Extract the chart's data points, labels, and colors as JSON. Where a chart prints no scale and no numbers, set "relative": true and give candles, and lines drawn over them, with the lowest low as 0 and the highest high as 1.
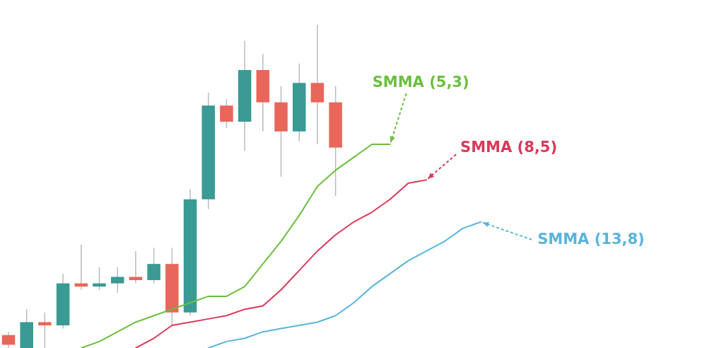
{
  "chart_data": {
    "type": "candlestick",
    "relative": true,
    "categories": [
      null,
      null,
      null,
      null,
      null,
      null,
      null,
      null,
      null,
      null,
      null,
      null,
      null,
      null,
      null,
      null,
      null,
      null,
      null,
      null,
      null,
      null,
      null,
      null,
      null,
      null,
      null
    ],
    "colors": [
      "#e8675a",
      "#3a9a94",
      "#e8675a",
      "#3a9a94",
      "#e8675a",
      "#3a9a94",
      "#3a9a94",
      "#e8675a",
      "#3a9a94",
      "#e8675a",
      "#3a9a94",
      "#3a9a94",
      "#e8675a",
      "#3a9a94",
      "#e8675a",
      "#e8675a",
      "#3a9a94",
      "#e8675a",
      "#e8675a",
      null,
      null,
      null,
      null,
      null,
      null,
      null,
      null
    ],
    "ohlc": [
      [
        0.04,
        0.05,
        0,
        0.01
      ],
      [
        0.0,
        0.12,
        0,
        0.08
      ],
      [
        0.08,
        0.11,
        0,
        0.07
      ],
      [
        0.07,
        0.23,
        0.06,
        0.2
      ],
      [
        0.2,
        0.32,
        0.18,
        0.19
      ],
      [
        0.19,
        0.25,
        0.18,
        0.2
      ],
      [
        0.2,
        0.25,
        0.17,
        0.22
      ],
      [
        0.22,
        0.3,
        0.2,
        0.21
      ],
      [
        0.21,
        0.31,
        0.2,
        0.26
      ],
      [
        0.26,
        0.31,
        0.07,
        0.11
      ],
      [
        0.11,
        0.49,
        0.1,
        0.46
      ],
      [
        0.46,
        0.79,
        0.43,
        0.75
      ],
      [
        0.75,
        0.77,
        0.68,
        0.7
      ],
      [
        0.7,
        0.95,
        0.61,
        0.86
      ],
      [
        0.86,
        0.91,
        0.67,
        0.76
      ],
      [
        0.76,
        0.81,
        0.53,
        0.67
      ],
      [
        0.67,
        0.88,
        0.64,
        0.82
      ],
      [
        0.82,
        1.0,
        0.63,
        0.76
      ],
      [
        0.76,
        0.81,
        0.47,
        0.62
      ],
      null,
      null,
      null,
      null,
      null,
      null,
      null,
      null
    ],
    "series": [
      {
        "type": "line",
        "name": "SMMA (5,3)",
        "color": "#6cbf3f",
        "values": [
          null,
          null,
          null,
          null,
          0,
          0.02,
          0.05,
          0.08,
          0.1,
          0.12,
          0.14,
          0.16,
          0.16,
          0.19,
          0.26,
          0.33,
          0.41,
          0.5,
          0.55,
          0.59,
          0.63,
          0.63,
          null,
          null,
          null,
          null,
          null
        ]
      },
      {
        "type": "line",
        "name": "SMMA (8,5)",
        "color": "#d9395a",
        "values": [
          null,
          null,
          null,
          null,
          null,
          null,
          null,
          0,
          0.03,
          0.07,
          0.08,
          0.09,
          0.1,
          0.12,
          0.13,
          0.18,
          0.24,
          0.3,
          0.35,
          0.39,
          0.42,
          0.46,
          0.51,
          0.52,
          null,
          null,
          null
        ]
      },
      {
        "type": "line",
        "name": "SMMA (13,8)",
        "color": "#5ab4dc",
        "values": [
          null,
          null,
          null,
          null,
          null,
          null,
          null,
          null,
          null,
          null,
          null,
          0,
          0.02,
          0.03,
          0.05,
          0.06,
          0.07,
          0.08,
          0.1,
          0.14,
          0.19,
          0.23,
          0.27,
          0.3,
          0.33,
          0.37,
          0.39
        ]
      }
    ]
  }
}
